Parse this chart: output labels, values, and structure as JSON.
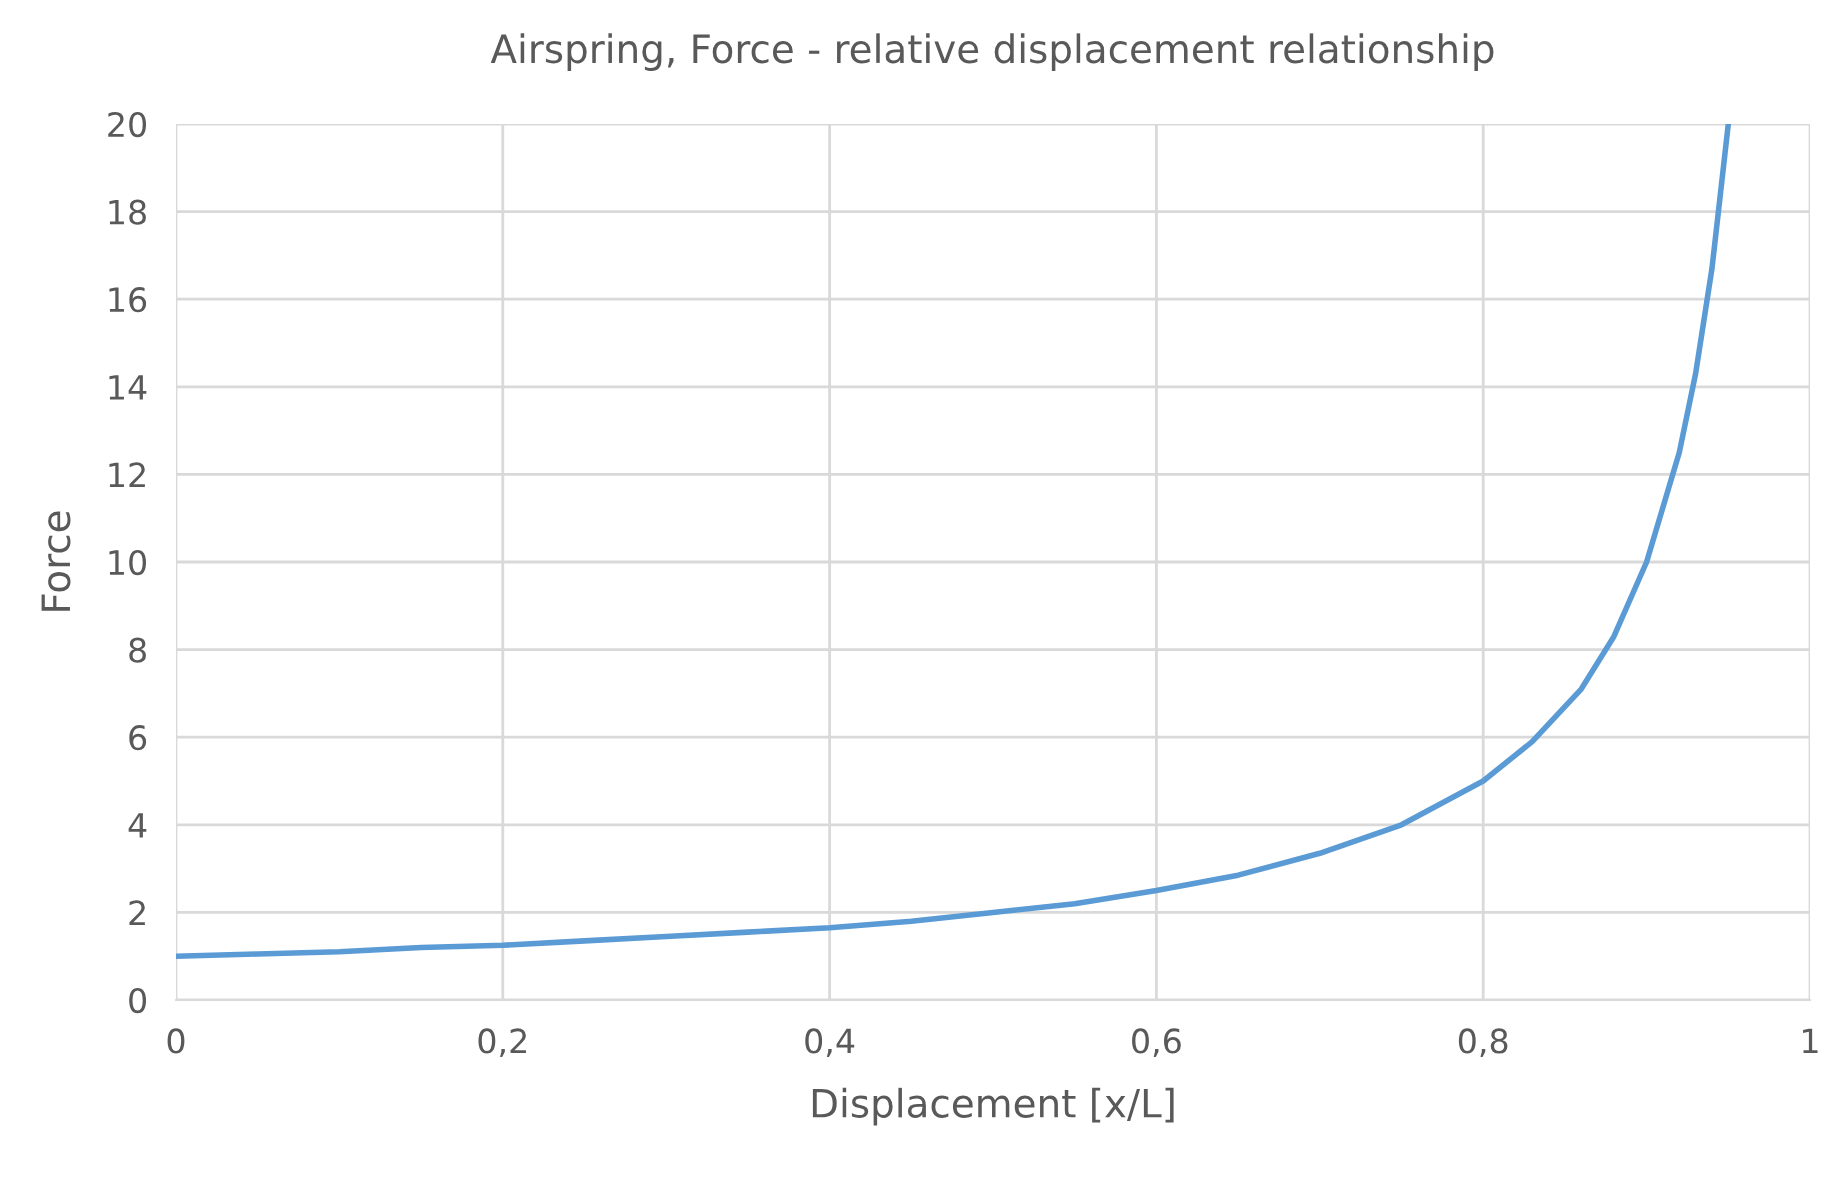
{
  "chart_data": {
    "type": "line",
    "title": "Airspring, Force - relative displacement relationship",
    "xlabel": "Displacement [x/L]",
    "ylabel": "Force",
    "x": [
      0,
      0.05,
      0.1,
      0.15,
      0.2,
      0.25,
      0.3,
      0.35,
      0.4,
      0.45,
      0.5,
      0.55,
      0.6,
      0.65,
      0.7,
      0.75,
      0.8,
      0.83,
      0.86,
      0.88,
      0.9,
      0.92,
      0.93,
      0.94,
      0.95
    ],
    "series": [
      {
        "color": "#5b9bd5",
        "values": [
          1.0,
          1.05,
          1.1,
          1.2,
          1.25,
          1.35,
          1.45,
          1.55,
          1.65,
          1.8,
          2.0,
          2.2,
          2.5,
          2.85,
          3.35,
          4.0,
          5.0,
          5.9,
          7.1,
          8.3,
          10.0,
          12.5,
          14.3,
          16.7,
          20.0
        ]
      }
    ],
    "xlim": [
      0,
      1
    ],
    "ylim": [
      0,
      20
    ],
    "xticks": [
      0,
      {
        "value": 0.2,
        "label": "0,2"
      },
      {
        "value": 0.4,
        "label": "0,4"
      },
      {
        "value": 0.6,
        "label": "0,6"
      },
      {
        "value": 0.8,
        "label": "0,8"
      },
      1
    ],
    "yticks": [
      0,
      2,
      4,
      6,
      8,
      10,
      12,
      14,
      16,
      18,
      20
    ],
    "grid": true,
    "legend": false,
    "marker": "none",
    "line_style": "solid"
  }
}
